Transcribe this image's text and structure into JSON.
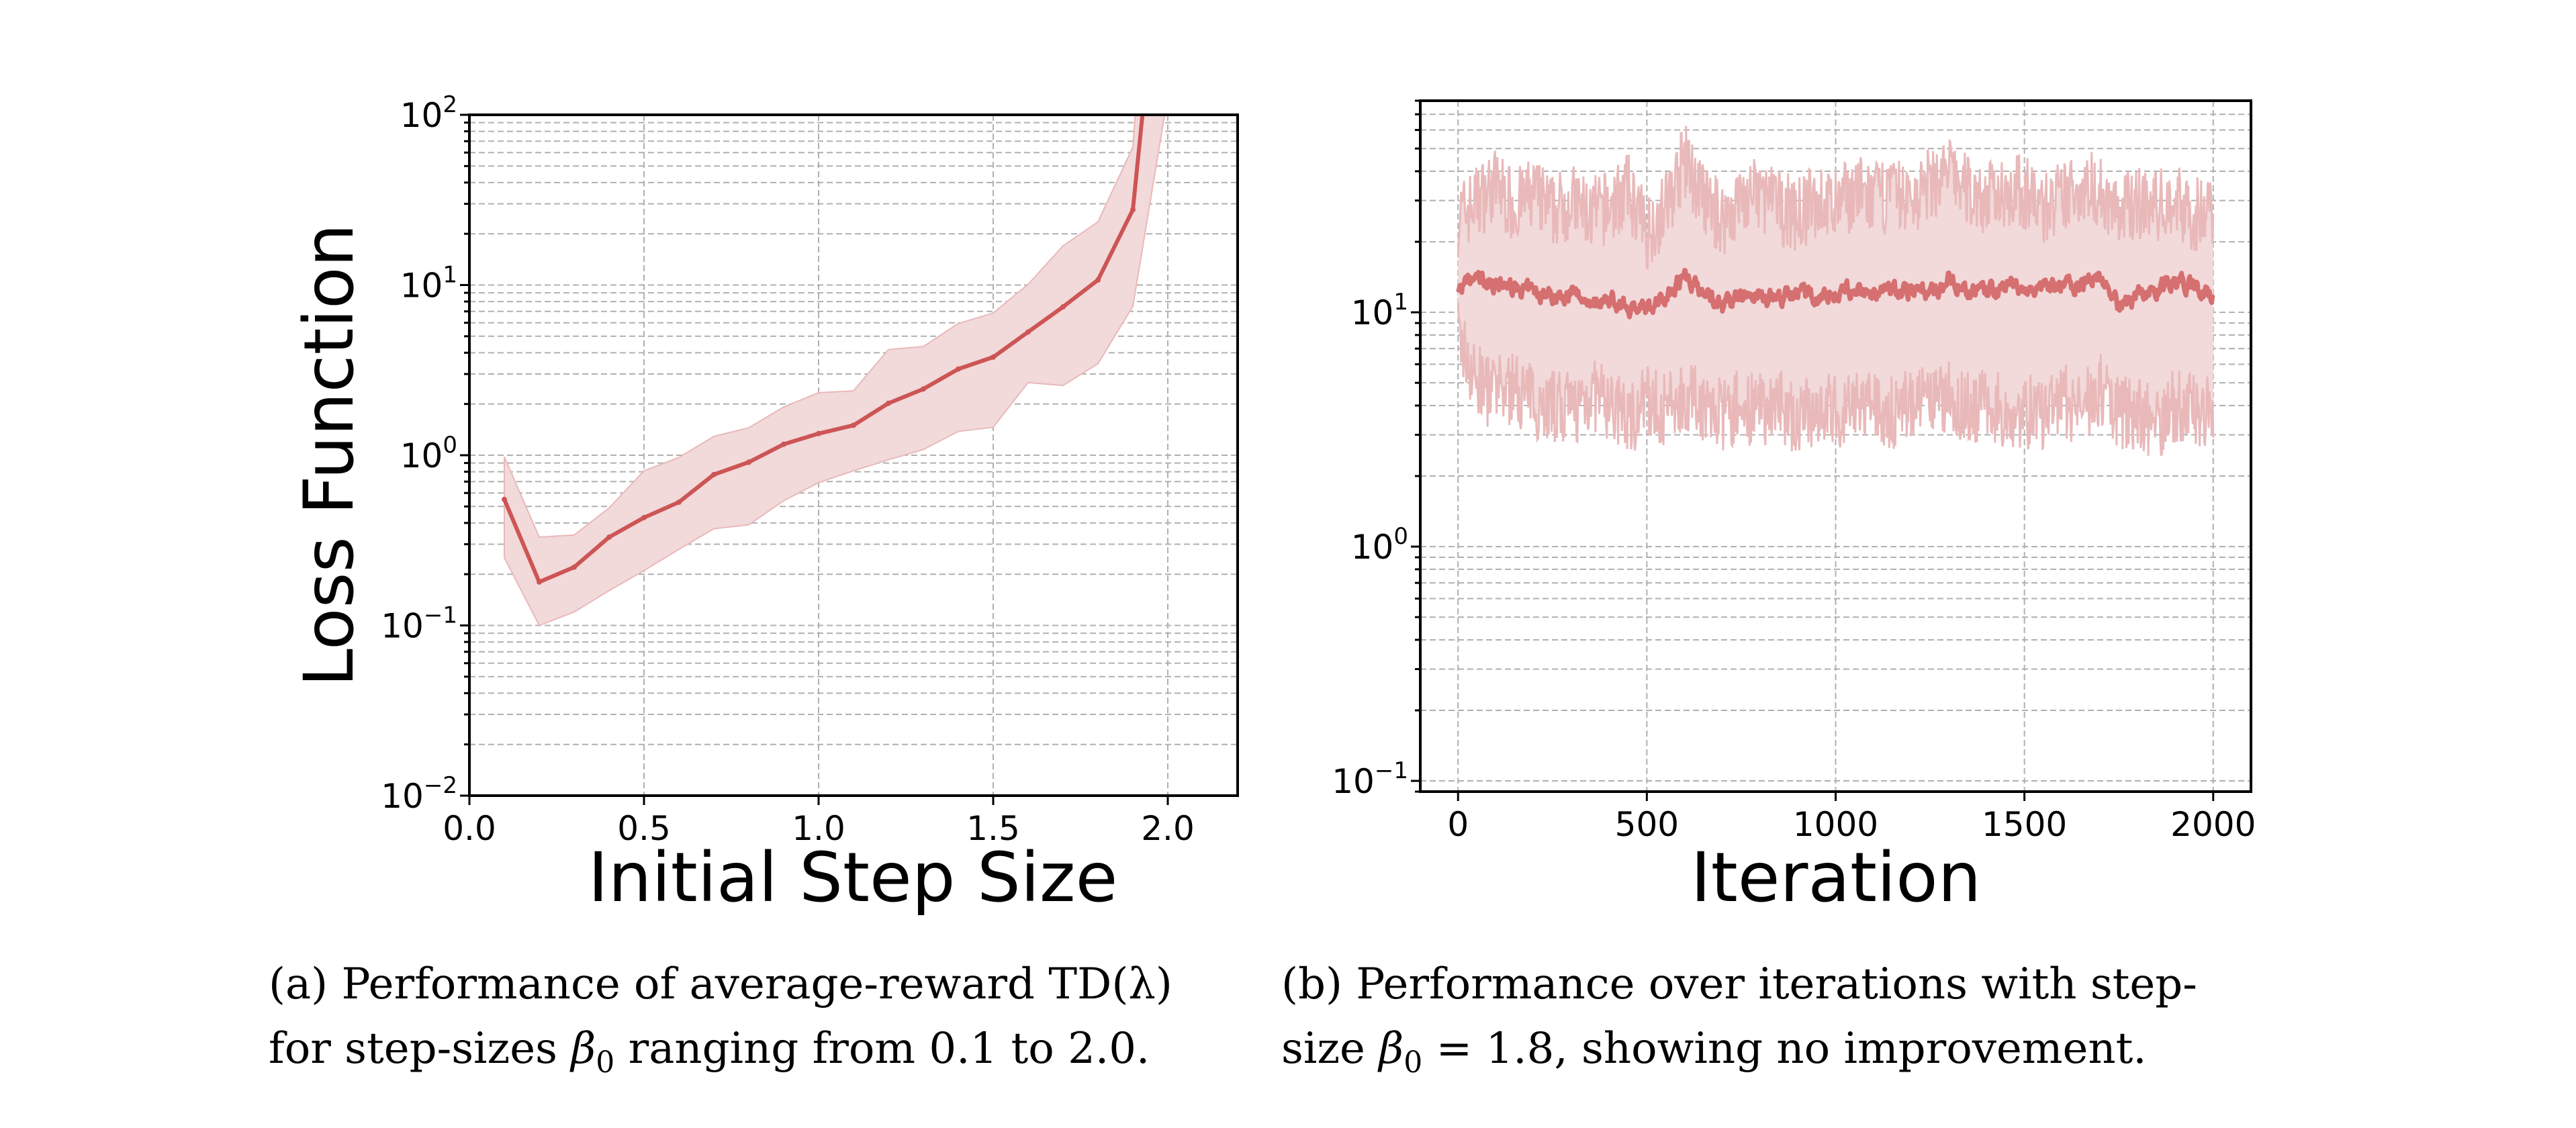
{
  "figure": {
    "captions": [
      {
        "label": "(a)",
        "line1": "Performance of average-reward TD(λ)",
        "line2_pre": "for step-sizes ",
        "symbol": "β",
        "subscript": "0",
        "line2_post": " ranging from 0.1 to 2.0."
      },
      {
        "label": "(b)",
        "line1": "Performance over iterations with step-",
        "line2_pre": "size ",
        "symbol": "β",
        "subscript": "0",
        "line2_post": " = 1.8, showing no improvement."
      }
    ]
  },
  "colors": {
    "line_left": "#cd5555",
    "line_right": "#d56f70",
    "band": "#f2d9da",
    "band_edge": "#e9b9ba"
  },
  "chart_data": [
    {
      "type": "line",
      "title": "",
      "xlabel": "Initial Step Size",
      "ylabel": "Loss Function",
      "xscale": "linear",
      "yscale": "log",
      "xlim": [
        0.0,
        2.2
      ],
      "ylim": [
        0.01,
        100
      ],
      "xticks": [
        0.0,
        0.5,
        1.0,
        1.5,
        2.0
      ],
      "xtick_labels": [
        "0.0",
        "0.5",
        "1.0",
        "1.5",
        "2.0"
      ],
      "yticks": [
        0.01,
        0.1,
        1,
        10,
        100
      ],
      "ytick_labels": [
        {
          "base": "10",
          "exp": "−2"
        },
        {
          "base": "10",
          "exp": "−1"
        },
        {
          "base": "10",
          "exp": "0"
        },
        {
          "base": "10",
          "exp": "1"
        },
        {
          "base": "10",
          "exp": "2"
        }
      ],
      "grid": true,
      "legend": "none",
      "x": [
        0.1,
        0.2,
        0.3,
        0.4,
        0.5,
        0.6,
        0.7,
        0.8,
        0.9,
        1.0,
        1.1,
        1.2,
        1.3,
        1.4,
        1.5,
        1.6,
        1.7,
        1.8,
        1.9,
        2.0
      ],
      "series": [
        {
          "name": "mean",
          "values": [
            0.55,
            0.18,
            0.22,
            0.33,
            0.43,
            0.53,
            0.77,
            0.91,
            1.16,
            1.34,
            1.5,
            2.02,
            2.45,
            3.21,
            3.77,
            5.3,
            7.44,
            10.7,
            27.7,
            3000
          ]
        },
        {
          "name": "upper",
          "values": [
            0.98,
            0.33,
            0.34,
            0.49,
            0.81,
            0.97,
            1.29,
            1.45,
            1.92,
            2.33,
            2.39,
            4.18,
            4.35,
            5.94,
            6.85,
            10.1,
            17.0,
            23.5,
            64.6,
            50000
          ]
        },
        {
          "name": "lower",
          "values": [
            0.25,
            0.1,
            0.12,
            0.16,
            0.21,
            0.28,
            0.37,
            0.39,
            0.54,
            0.69,
            0.81,
            0.94,
            1.08,
            1.38,
            1.46,
            2.67,
            2.57,
            3.45,
            7.5,
            130
          ]
        }
      ],
      "note": "value at x=2.0 exceeds the visible y-range (clipped)"
    },
    {
      "type": "line",
      "title": "",
      "xlabel": "Iteration",
      "ylabel": "",
      "xscale": "linear",
      "yscale": "log",
      "xlim": [
        -100,
        2100
      ],
      "ylim": [
        0.09,
        80
      ],
      "xticks": [
        0,
        500,
        1000,
        1500,
        2000
      ],
      "xtick_labels": [
        "0",
        "500",
        "1000",
        "1500",
        "2000"
      ],
      "yticks": [
        0.1,
        1,
        10
      ],
      "ytick_labels": [
        {
          "base": "10",
          "exp": "−1"
        },
        {
          "base": "10",
          "exp": "0"
        },
        {
          "base": "10",
          "exp": "1"
        }
      ],
      "grid": true,
      "legend": "none",
      "sample_every": 50,
      "x": [
        0,
        50,
        100,
        150,
        200,
        250,
        300,
        350,
        400,
        450,
        500,
        550,
        600,
        650,
        700,
        750,
        800,
        850,
        900,
        950,
        1000,
        1050,
        1100,
        1150,
        1200,
        1250,
        1300,
        1350,
        1400,
        1450,
        1500,
        1550,
        1600,
        1650,
        1700,
        1750,
        1800,
        1850,
        1900,
        1950,
        2000
      ],
      "series": [
        {
          "name": "mean",
          "values": [
            12.5,
            14.0,
            13.2,
            12.6,
            12.2,
            11.8,
            12.0,
            11.2,
            11.4,
            10.6,
            10.2,
            11.8,
            14.5,
            12.2,
            10.8,
            11.6,
            11.9,
            11.5,
            12.1,
            11.7,
            12.0,
            12.4,
            11.8,
            12.3,
            12.6,
            12.1,
            13.8,
            12.4,
            12.3,
            12.8,
            12.7,
            12.4,
            13.0,
            13.3,
            14.5,
            10.5,
            11.8,
            12.4,
            13.6,
            12.7,
            11.5
          ]
        },
        {
          "name": "upper",
          "values": [
            25,
            30,
            35,
            28,
            32,
            27,
            30,
            26,
            28,
            33,
            22,
            28,
            45,
            30,
            25,
            30,
            32,
            28,
            26,
            30,
            28,
            33,
            30,
            32,
            30,
            35,
            40,
            33,
            30,
            34,
            32,
            28,
            30,
            35,
            33,
            26,
            30,
            28,
            30,
            26,
            28
          ]
        },
        {
          "name": "lower",
          "values": [
            8,
            5,
            4.5,
            4.8,
            4.2,
            4.0,
            3.8,
            4.5,
            4.0,
            3.5,
            4.2,
            3.8,
            4.5,
            4.0,
            3.6,
            4.0,
            3.8,
            4.2,
            3.4,
            4.0,
            3.8,
            3.9,
            4.0,
            3.7,
            4.2,
            4.0,
            4.4,
            3.9,
            4.1,
            3.7,
            3.8,
            3.6,
            4.2,
            3.9,
            4.6,
            3.8,
            3.7,
            3.4,
            4.0,
            3.8,
            4.0
          ]
        }
      ],
      "note": "2000 iterations; values summarised every 50 iterations (band fluctuates strongly between samples)"
    }
  ]
}
